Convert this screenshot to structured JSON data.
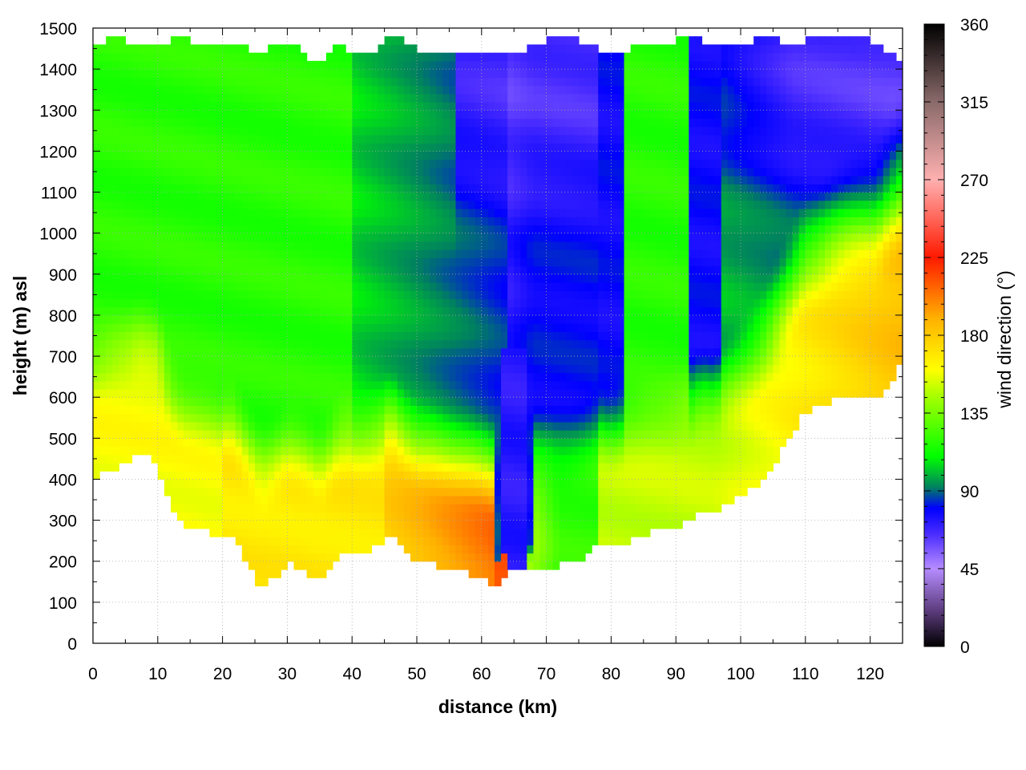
{
  "chart_data": {
    "type": "heatmap",
    "title": "",
    "xlabel": "distance (km)",
    "ylabel": "height (m) asl",
    "xlim": [
      0,
      125
    ],
    "ylim": [
      0,
      1500
    ],
    "x_ticks": [
      0,
      10,
      20,
      30,
      40,
      50,
      60,
      70,
      80,
      90,
      100,
      110,
      120
    ],
    "y_ticks": [
      0,
      100,
      200,
      300,
      400,
      500,
      600,
      700,
      800,
      900,
      1000,
      1100,
      1200,
      1300,
      1400,
      1500
    ],
    "grid": true,
    "colorbar": {
      "label": "wind direction (°)",
      "range": [
        0,
        360
      ],
      "ticks": [
        0,
        45,
        90,
        135,
        180,
        225,
        270,
        315,
        360
      ],
      "stops": [
        {
          "value": 0,
          "color": "#000000"
        },
        {
          "value": 20,
          "color": "#5a3a7a"
        },
        {
          "value": 45,
          "color": "#b68cff"
        },
        {
          "value": 65,
          "color": "#4a2cff"
        },
        {
          "value": 80,
          "color": "#0000ff"
        },
        {
          "value": 92,
          "color": "#008060"
        },
        {
          "value": 110,
          "color": "#00ff00"
        },
        {
          "value": 145,
          "color": "#a8ff00"
        },
        {
          "value": 160,
          "color": "#ffff00"
        },
        {
          "value": 190,
          "color": "#ffb000"
        },
        {
          "value": 225,
          "color": "#ff1a00"
        },
        {
          "value": 270,
          "color": "#ffb0b0"
        },
        {
          "value": 315,
          "color": "#8a6a6a"
        },
        {
          "value": 360,
          "color": "#000000"
        }
      ]
    },
    "terrain": {
      "x": [
        0,
        3,
        6,
        7,
        9,
        10,
        11,
        12,
        14,
        16,
        18,
        20,
        21,
        22,
        23,
        24,
        25,
        26,
        27,
        28,
        30,
        32,
        34,
        35,
        36,
        38,
        40,
        42,
        44,
        46,
        47,
        48,
        50,
        52,
        54,
        56,
        58,
        60,
        62,
        63,
        64,
        65,
        66,
        68,
        70,
        72,
        74,
        76,
        78,
        80,
        82,
        84,
        86,
        88,
        90,
        92,
        94,
        96,
        98,
        100,
        102,
        104,
        106,
        108,
        110,
        112,
        114,
        116,
        118,
        120,
        121,
        122,
        123,
        124,
        125
      ],
      "y": [
        400,
        425,
        445,
        460,
        450,
        440,
        380,
        330,
        290,
        280,
        270,
        255,
        260,
        250,
        215,
        190,
        160,
        140,
        145,
        160,
        195,
        185,
        160,
        145,
        165,
        215,
        225,
        225,
        240,
        265,
        245,
        225,
        200,
        195,
        185,
        175,
        170,
        160,
        145,
        155,
        175,
        185,
        170,
        180,
        185,
        190,
        195,
        210,
        240,
        230,
        245,
        255,
        270,
        275,
        285,
        300,
        325,
        320,
        340,
        360,
        380,
        410,
        460,
        515,
        565,
        575,
        595,
        605,
        605,
        595,
        590,
        615,
        640,
        660,
        690
      ]
    },
    "top_boundary": {
      "x": [
        0,
        2,
        4,
        6,
        8,
        10,
        12,
        14,
        16,
        18,
        20,
        22,
        24,
        26,
        28,
        30,
        32,
        34,
        35,
        36,
        38,
        40,
        42,
        44,
        46,
        48,
        50,
        52,
        54,
        56,
        58,
        60,
        62,
        64,
        66,
        68,
        70,
        72,
        74,
        76,
        78,
        80,
        82,
        84,
        86,
        88,
        90,
        92,
        94,
        96,
        98,
        100,
        102,
        104,
        106,
        108,
        110,
        112,
        114,
        116,
        118,
        120,
        122,
        124,
        125
      ],
      "y": [
        1455,
        1470,
        1480,
        1460,
        1470,
        1455,
        1470,
        1480,
        1465,
        1450,
        1460,
        1470,
        1445,
        1440,
        1460,
        1470,
        1450,
        1420,
        1410,
        1440,
        1465,
        1435,
        1430,
        1455,
        1480,
        1470,
        1445,
        1440,
        1450,
        1435,
        1440,
        1430,
        1440,
        1450,
        1440,
        1455,
        1470,
        1480,
        1475,
        1460,
        1450,
        1435,
        1440,
        1460,
        1470,
        1460,
        1470,
        1480,
        1470,
        1455,
        1450,
        1460,
        1470,
        1480,
        1470,
        1460,
        1470,
        1480,
        1470,
        1475,
        1480,
        1470,
        1450,
        1430,
        1420
      ]
    }
  }
}
